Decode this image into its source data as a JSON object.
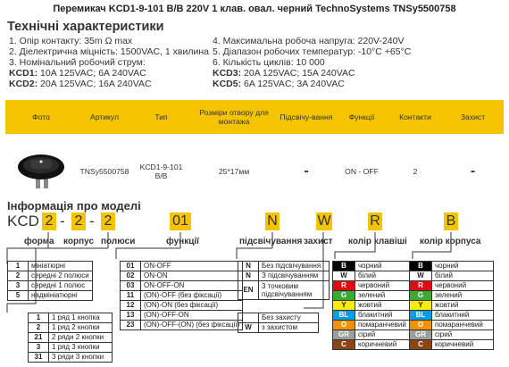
{
  "title": "Перемикач KCD1-9-101 B/B 220V 1 клав. овал. черний TechnoSystems TNSy5500758",
  "specs_heading": "Технічні характеристики",
  "specs_left": [
    "1. Опір контакту: 35m Ω  max",
    "2. Діелектрична міцність:  1500VAC, 1 хвилина",
    "3. Номінальний робочий струм:"
  ],
  "specs_right": [
    "4. Максимальна робоча напруга: 220V-240V",
    "5. Діапазон робочих температур: -10°C +65°C",
    "6. Кількість циклів: 10 000"
  ],
  "currents": [
    {
      "model": "KCD1:",
      "value": " 10A 125VAC; 6A 240VAC"
    },
    {
      "model": "KCD2:",
      "value": " 20A 125VAC; 16A 240VAC"
    },
    {
      "model": "KCD3:",
      "value": " 20A 125VAC; 15A 240VAC"
    },
    {
      "model": "KCD5:",
      "value": " 6A 125VAC; 3A 240VAC"
    }
  ],
  "table": {
    "headers": [
      "Фото",
      "Артикул",
      "Тип",
      "Розміри отвору для монтажа",
      "Підсвічу-вання",
      "Функції",
      "Контакти",
      "Захист"
    ],
    "row": [
      "",
      "TNSy5500758",
      "KCD1-9-101 B/B",
      "25*17мм",
      "-",
      "ON - OFF",
      "2",
      "-"
    ]
  },
  "model_heading": "Інформація про моделі",
  "code": {
    "prefix": "KCD",
    "parts": [
      "2",
      "2",
      "2",
      "01",
      "N",
      "W",
      "R",
      "B"
    ],
    "dash": "-"
  },
  "labels": {
    "form": "форма",
    "body": "корпус",
    "poles": "полюси",
    "functions": "функції",
    "light": "підсвічування",
    "protect": "захист",
    "key_color": "колір клавіші",
    "body_color": "колір корпуса"
  },
  "form_list": [
    [
      "1",
      "мініатюрні"
    ],
    [
      "2",
      "середні 2 полюси"
    ],
    [
      "3",
      "середні 1 полюс"
    ],
    [
      "5",
      "надмініатюрні"
    ]
  ],
  "poles_list": [
    [
      "1",
      "1 ряд 1 кнопка"
    ],
    [
      "2",
      "1 ряд 2 кнопки"
    ],
    [
      "21",
      "2 ряди 2 кнопки"
    ],
    [
      "3",
      "1 ряд 3 кнопки"
    ],
    [
      "31",
      "3 ряди 3 кнопки"
    ]
  ],
  "func_list": [
    [
      "01",
      "ON-OFF"
    ],
    [
      "02",
      "ON-ON"
    ],
    [
      "03",
      "ON-OFF-ON"
    ],
    [
      "11",
      "(ON)-OFF (без фіксації)"
    ],
    [
      "12",
      "(ON)-ON (без фіксації)"
    ],
    [
      "13",
      "(ON)-OFF-ON"
    ],
    [
      "23",
      "(ON)-OFF-(ON) (без фіксації)"
    ]
  ],
  "light_list": [
    [
      "N",
      "Без підсвічування"
    ],
    [
      "N",
      "З підсвічуванням"
    ],
    [
      "EN",
      "3 точковим підсвічуванням"
    ]
  ],
  "protect_list": [
    [
      "",
      "Без захисту"
    ],
    [
      "W",
      "з захистом"
    ]
  ],
  "key_colors": [
    {
      "code": "B",
      "name": "чорний",
      "color": "#000000"
    },
    {
      "code": "W",
      "name": "білий",
      "color": "#ffffff"
    },
    {
      "code": "R",
      "name": "червоний",
      "color": "#e30613"
    },
    {
      "code": "G",
      "name": "зелений",
      "color": "#3aaa35"
    },
    {
      "code": "Y",
      "name": "жовтий",
      "color": "#ffed00"
    },
    {
      "code": "BL",
      "name": "блакитний",
      "color": "#009fe3"
    },
    {
      "code": "O",
      "name": "помаранчевий",
      "color": "#f39200"
    },
    {
      "code": "GR",
      "name": "сірий",
      "color": "#9d9d9c"
    },
    {
      "code": "C",
      "name": "коричневий",
      "color": "#8b4513"
    }
  ],
  "body_colors": [
    {
      "code": "B",
      "name": "чорний",
      "color": "#000000"
    },
    {
      "code": "W",
      "name": "білий",
      "color": "#ffffff"
    },
    {
      "code": "R",
      "name": "червоний",
      "color": "#e30613"
    },
    {
      "code": "G",
      "name": "зелений",
      "color": "#3aaa35"
    },
    {
      "code": "Y",
      "name": "жовтий",
      "color": "#ffed00"
    },
    {
      "code": "BL",
      "name": "блакитний",
      "color": "#009fe3"
    },
    {
      "code": "O",
      "name": "помаранчевий",
      "color": "#f39200"
    },
    {
      "code": "GR",
      "name": "сірий",
      "color": "#9d9d9c"
    },
    {
      "code": "C",
      "name": "коричневий",
      "color": "#8b4513"
    }
  ]
}
